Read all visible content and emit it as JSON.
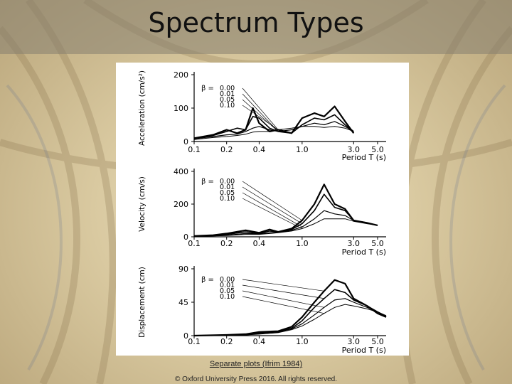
{
  "slide": {
    "title": "Spectrum Types",
    "caption": "Separate plots (Ifrim 1984)",
    "copyright": "© Oxford University Press 2016. All rights reserved."
  },
  "chart_data": [
    {
      "type": "line",
      "ylabel": "Acceleration (cm/s²)",
      "xlabel": "Period T (s)",
      "x_ticks": [
        "0.1",
        "0.2",
        "0.4",
        "1.0",
        "3.0",
        "5.0"
      ],
      "y_ticks": [
        "0",
        "100",
        "200"
      ],
      "ylim": [
        0,
        200
      ],
      "legend_title": "β =",
      "legend_entries": [
        "0.00",
        "0.01",
        "0.05",
        "0.10"
      ],
      "x": [
        0.1,
        0.15,
        0.2,
        0.25,
        0.3,
        0.35,
        0.4,
        0.5,
        0.6,
        0.8,
        1.0,
        1.3,
        1.6,
        2.0,
        2.5,
        3.0
      ],
      "series": [
        {
          "name": "0.00",
          "values": [
            10,
            20,
            35,
            25,
            35,
            100,
            55,
            30,
            35,
            25,
            70,
            85,
            75,
            105,
            60,
            25
          ]
        },
        {
          "name": "0.01",
          "values": [
            10,
            18,
            30,
            40,
            35,
            75,
            70,
            40,
            30,
            25,
            50,
            70,
            65,
            80,
            50,
            30
          ]
        },
        {
          "name": "0.05",
          "values": [
            8,
            15,
            20,
            22,
            30,
            40,
            45,
            35,
            30,
            35,
            45,
            55,
            50,
            60,
            45,
            30
          ]
        },
        {
          "name": "0.10",
          "values": [
            6,
            12,
            15,
            18,
            22,
            28,
            30,
            30,
            35,
            40,
            45,
            45,
            42,
            45,
            40,
            30
          ]
        }
      ]
    },
    {
      "type": "line",
      "ylabel": "Velocity (cm/s)",
      "xlabel": "Period T (s)",
      "x_ticks": [
        "0.1",
        "0.2",
        "0.4",
        "1.0",
        "3.0",
        "5.0"
      ],
      "y_ticks": [
        "0",
        "200",
        "400"
      ],
      "ylim": [
        0,
        400
      ],
      "legend_title": "β =",
      "legend_entries": [
        "0.00",
        "0.01",
        "0.05",
        "0.10"
      ],
      "x": [
        0.1,
        0.15,
        0.2,
        0.3,
        0.4,
        0.5,
        0.6,
        0.8,
        1.0,
        1.3,
        1.6,
        2.0,
        2.5,
        3.0,
        4.0,
        5.0
      ],
      "series": [
        {
          "name": "0.00",
          "values": [
            5,
            10,
            20,
            40,
            25,
            45,
            30,
            50,
            100,
            200,
            320,
            200,
            170,
            100,
            85,
            70
          ]
        },
        {
          "name": "0.01",
          "values": [
            5,
            8,
            15,
            30,
            20,
            35,
            30,
            45,
            80,
            160,
            260,
            180,
            160,
            100,
            85,
            70
          ]
        },
        {
          "name": "0.05",
          "values": [
            4,
            6,
            10,
            20,
            18,
            25,
            28,
            40,
            60,
            110,
            160,
            140,
            130,
            100,
            85,
            70
          ]
        },
        {
          "name": "0.10",
          "values": [
            3,
            5,
            8,
            15,
            15,
            20,
            25,
            35,
            50,
            80,
            110,
            110,
            110,
            95,
            80,
            70
          ]
        }
      ]
    },
    {
      "type": "line",
      "ylabel": "Displacement (cm)",
      "xlabel": "Period T (s)",
      "x_ticks": [
        "0.1",
        "0.2",
        "0.4",
        "1.0",
        "3.0",
        "5.0"
      ],
      "y_ticks": [
        "0",
        "45",
        "90"
      ],
      "ylim": [
        0,
        90
      ],
      "legend_title": "β =",
      "legend_entries": [
        "0.00",
        "0.01",
        "0.05",
        "0.10"
      ],
      "x": [
        0.1,
        0.2,
        0.3,
        0.4,
        0.6,
        0.8,
        1.0,
        1.3,
        1.6,
        2.0,
        2.5,
        3.0,
        4.0,
        5.0,
        6.0
      ],
      "series": [
        {
          "name": "0.00",
          "values": [
            0,
            1,
            2,
            5,
            6,
            12,
            25,
            45,
            60,
            75,
            70,
            50,
            40,
            30,
            25
          ]
        },
        {
          "name": "0.01",
          "values": [
            0,
            1,
            2,
            4,
            5,
            10,
            20,
            38,
            50,
            62,
            58,
            48,
            40,
            32,
            26
          ]
        },
        {
          "name": "0.05",
          "values": [
            0,
            1,
            1,
            3,
            5,
            9,
            16,
            28,
            38,
            48,
            50,
            45,
            38,
            32,
            26
          ]
        },
        {
          "name": "0.10",
          "values": [
            0,
            0,
            1,
            2,
            4,
            8,
            13,
            22,
            30,
            38,
            42,
            40,
            36,
            32,
            27
          ]
        }
      ]
    }
  ]
}
